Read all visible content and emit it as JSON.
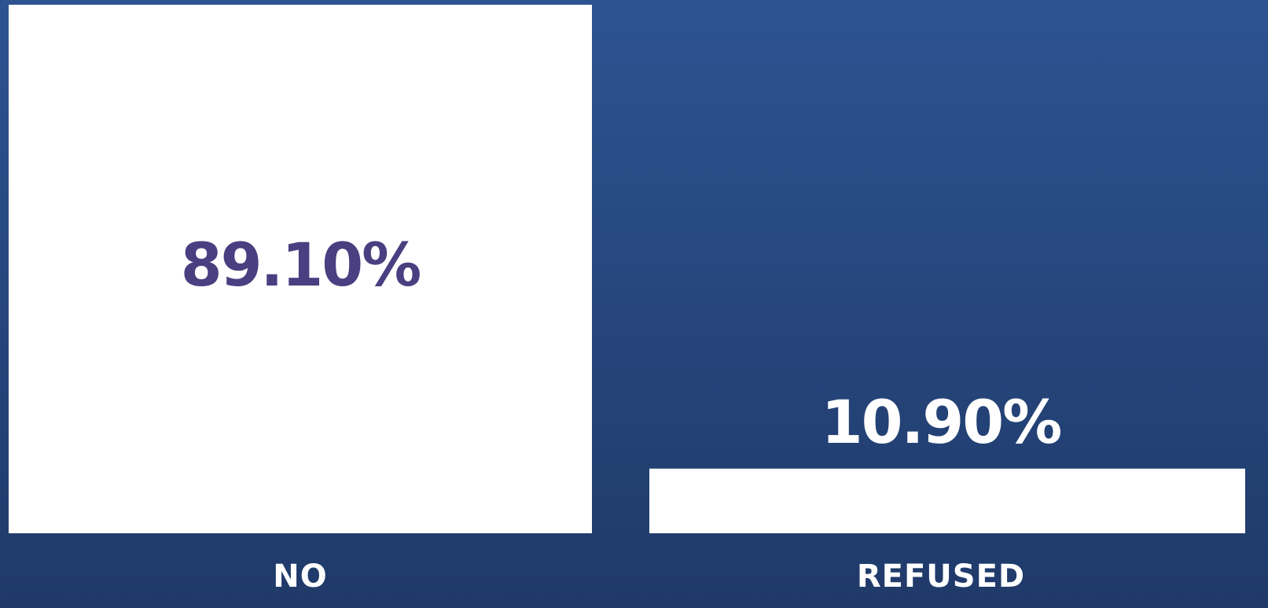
{
  "chart_data": {
    "type": "bar",
    "categories": [
      "NO",
      "REFUSED"
    ],
    "values": [
      89.1,
      10.9
    ],
    "value_labels": [
      "89.10%",
      "10.90%"
    ],
    "color": "#ffffff"
  }
}
